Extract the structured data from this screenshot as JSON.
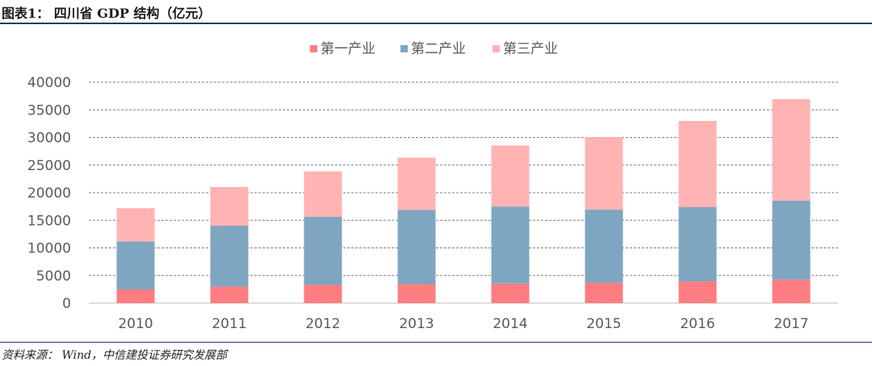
{
  "header": {
    "title": "图表1：  四川省 GDP 结构（亿元）"
  },
  "footer": {
    "source": "资料来源：  Wind，中信建投证券研究发展部"
  },
  "colors": {
    "primary": "#ff7c80",
    "secondary": "#7ea6c0",
    "tertiary": "#ffb3b3",
    "grid": "#7f7f7f",
    "rule": "#1f3a6b"
  },
  "chart_data": {
    "type": "bar",
    "stacked": true,
    "categories": [
      "2010",
      "2011",
      "2012",
      "2013",
      "2014",
      "2015",
      "2016",
      "2017"
    ],
    "series": [
      {
        "name": "第一产业",
        "color": "#ff7c80",
        "values": [
          2483,
          2984,
          3297,
          3426,
          3531,
          3677,
          3925,
          4263
        ]
      },
      {
        "name": "第二产业",
        "color": "#7ea6c0",
        "values": [
          8672,
          11029,
          12333,
          13455,
          13962,
          13248,
          13448,
          14294
        ]
      },
      {
        "name": "第三产业",
        "color": "#ffb3b3",
        "values": [
          6030,
          7014,
          8216,
          9469,
          11068,
          13127,
          15619,
          18380
        ]
      }
    ],
    "ylim": [
      0,
      40000
    ],
    "yticks": [
      0,
      5000,
      10000,
      15000,
      20000,
      25000,
      30000,
      35000,
      40000
    ],
    "grid": true,
    "grid_style": "dashed",
    "legend_position": "top"
  }
}
